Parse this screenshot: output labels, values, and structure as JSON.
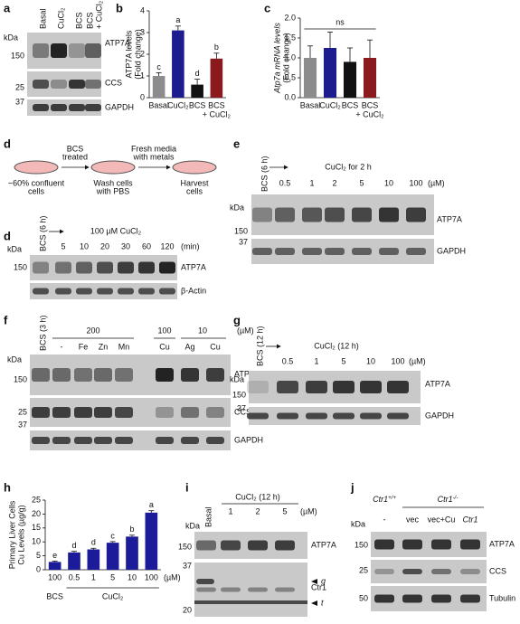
{
  "panels": {
    "a": {
      "label": "a",
      "kda": "kDa",
      "lanes": [
        "Basal",
        "CuCl₂",
        "BCS",
        [
          "BCS",
          "+ CuCl₂"
        ]
      ],
      "markers": [
        "150",
        "25",
        "37"
      ],
      "bands": [
        "ATP7A",
        "CCS",
        "GAPDH"
      ]
    },
    "d": {
      "label": "d",
      "steps": [
        [
          "~60% confluent",
          "cells"
        ],
        [
          "Wash cells",
          "with PBS"
        ],
        [
          "Harvest",
          "cells"
        ]
      ],
      "arrows": [
        [
          "BCS",
          "treated"
        ],
        [
          "Fresh media",
          "with metals"
        ]
      ],
      "lane0": "BCS (6 h)",
      "header": "100 µM CuCl₂",
      "doses": [
        "5",
        "10",
        "20",
        "30",
        "60",
        "120"
      ],
      "unit": "(min)",
      "kda": "kDa",
      "markers": [
        "150"
      ],
      "bands": [
        "ATP7A",
        "β-Actin"
      ]
    },
    "e": {
      "label": "e",
      "lane0": "BCS (6 h)",
      "header": "CuCl₂ for 2 h",
      "doses": [
        "0.5",
        "1",
        "2",
        "5",
        "10",
        "100"
      ],
      "unit": "(µM)",
      "kda": "kDa",
      "markers": [
        "150",
        "37"
      ],
      "bands": [
        "ATP7A",
        "GAPDH"
      ]
    },
    "f": {
      "label": "f",
      "lane0": "BCS (3 h)",
      "groups": [
        "200",
        "100",
        "10"
      ],
      "unit": "(µM)",
      "lanes": [
        "-",
        "Fe",
        "Zn",
        "Mn",
        "Cu",
        "Ag",
        "Cu"
      ],
      "kda": "kDa",
      "markers": [
        "150",
        "25",
        "37"
      ],
      "bands": [
        "ATP7A",
        "CCS",
        "GAPDH"
      ]
    },
    "g": {
      "label": "g",
      "lane0": "BCS (12 h)",
      "header": "CuCl₂ (12 h)",
      "doses": [
        "0.5",
        "1",
        "5",
        "10",
        "100"
      ],
      "unit": "(µM)",
      "kda": "kDa",
      "markers": [
        "150",
        "37"
      ],
      "bands": [
        "ATP7A",
        "GAPDH"
      ]
    },
    "i": {
      "label": "i",
      "lane0": "Basal",
      "header": "CuCl₂ (12 h)",
      "doses": [
        "1",
        "2",
        "5"
      ],
      "unit": "(µM)",
      "kda": "kDa",
      "markers": [
        "150",
        "37",
        "20"
      ],
      "bands": [
        "ATP7A",
        "Ctr1"
      ],
      "arrows": [
        "g",
        "t"
      ]
    },
    "j": {
      "label": "j",
      "genotypes": [
        [
          "Ctr1",
          "+/+"
        ],
        [
          "Ctr1",
          "-/-"
        ]
      ],
      "lanes": [
        "-",
        "vec",
        "vec+Cu",
        "Ctr1"
      ],
      "kda": "kDa",
      "markers": [
        "150",
        "25",
        "50"
      ],
      "bands": [
        "ATP7A",
        "CCS",
        "Tubulin"
      ]
    }
  },
  "chart_data": [
    {
      "type": "bar",
      "label": "b",
      "ylabel": [
        "ATP7A levels",
        "(Fold change)"
      ],
      "categories": [
        "Basal",
        "CuCl₂",
        "BCS",
        [
          "BCS",
          "+ CuCl₂"
        ]
      ],
      "values": [
        1.0,
        3.1,
        0.6,
        1.8
      ],
      "errors": [
        0.15,
        0.2,
        0.25,
        0.25
      ],
      "annotations": [
        "c",
        "a",
        "d",
        "b"
      ],
      "colors": [
        "#8c8c8c",
        "#1c1c8f",
        "#111111",
        "#8b1a1f"
      ],
      "ylim": [
        0,
        4
      ],
      "yticks": [
        0,
        1,
        2,
        3,
        4
      ]
    },
    {
      "type": "bar",
      "label": "c",
      "ylabel": [
        "Atp7a mRNA levels",
        "(Fold change)"
      ],
      "categories": [
        "Basal",
        "CuCl₂",
        "BCS",
        [
          "BCS",
          "+ CuCl₂"
        ]
      ],
      "values": [
        1.0,
        1.25,
        0.9,
        1.0
      ],
      "errors": [
        0.3,
        0.4,
        0.35,
        0.45
      ],
      "note": "ns",
      "colors": [
        "#8c8c8c",
        "#1c1c8f",
        "#111111",
        "#8b1a1f"
      ],
      "ylim": [
        0,
        2
      ],
      "yticks": [
        {
          "value": 0,
          "label": "0.0"
        },
        {
          "value": 0.5,
          "label": "0.5"
        },
        {
          "value": 1,
          "label": "1.0"
        },
        {
          "value": 1.5,
          "label": "1.5"
        },
        {
          "value": 2,
          "label": "2.0"
        }
      ]
    },
    {
      "type": "bar",
      "label": "h",
      "ylabel": [
        "Primary Liver Cells",
        "Cu Levels (µg/g)"
      ],
      "categories": [
        "100",
        "0.5",
        "1",
        "5",
        "10",
        "100"
      ],
      "unit": "(µM)",
      "groups": [
        "BCS",
        "CuCl₂"
      ],
      "values": [
        2.8,
        6.2,
        7.3,
        9.7,
        11.9,
        20.5
      ],
      "errors": [
        0.3,
        0.4,
        0.4,
        0.4,
        0.5,
        0.7
      ],
      "annotations": [
        "e",
        "d",
        "d",
        "c",
        "b",
        "a"
      ],
      "color": "#1c1c9a",
      "ylim": [
        0,
        25
      ],
      "yticks": [
        0,
        5,
        10,
        15,
        20,
        25
      ]
    }
  ]
}
